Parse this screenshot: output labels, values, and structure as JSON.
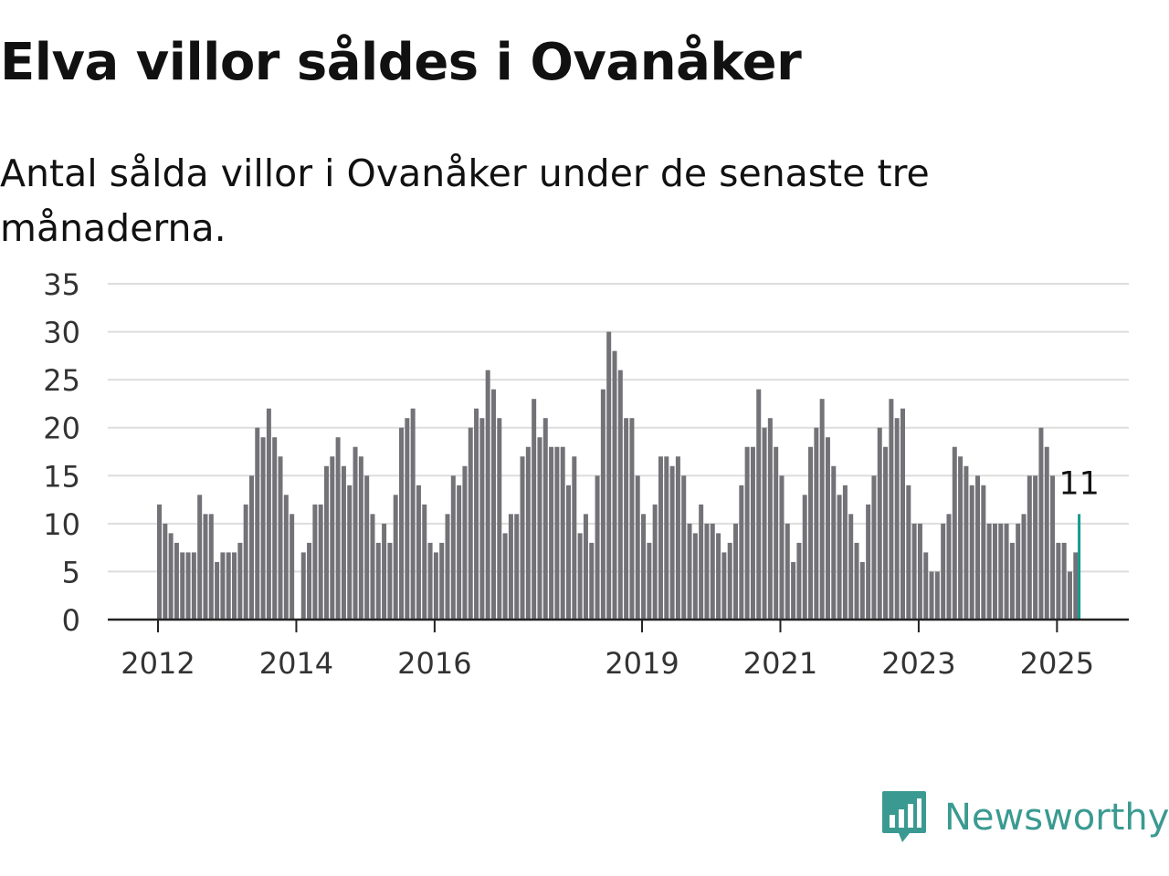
{
  "title": "Elva villor såldes i Ovanåker",
  "subtitle": "Antal sålda villor i Ovanåker under de senaste tre månaderna.",
  "brand": {
    "name": "Newsworthy",
    "color": "#3a9a91"
  },
  "chart_data": {
    "type": "bar",
    "title": "Elva villor såldes i Ovanåker",
    "subtitle": "Antal sålda villor i Ovanåker under de senaste tre månaderna.",
    "xlabel": "",
    "ylabel": "",
    "ylim": [
      0,
      35
    ],
    "yticks": [
      0,
      5,
      10,
      15,
      20,
      25,
      30,
      35
    ],
    "xtick_labels": [
      "2012",
      "2014",
      "2016",
      "2019",
      "2021",
      "2023",
      "2025"
    ],
    "start_period": "2012-01",
    "frequency": "monthly",
    "grid": true,
    "legend": "none",
    "bar_color": "#737277",
    "highlight_color": "#149b8f",
    "highlight_label": "11",
    "values": [
      12,
      10,
      9,
      8,
      7,
      7,
      7,
      13,
      11,
      11,
      6,
      7,
      7,
      7,
      8,
      12,
      15,
      20,
      19,
      22,
      19,
      17,
      13,
      11,
      0,
      7,
      8,
      12,
      12,
      16,
      17,
      19,
      16,
      14,
      18,
      17,
      15,
      11,
      8,
      10,
      8,
      13,
      20,
      21,
      22,
      14,
      12,
      8,
      7,
      8,
      11,
      15,
      14,
      16,
      20,
      22,
      21,
      26,
      24,
      21,
      9,
      11,
      11,
      17,
      18,
      23,
      19,
      21,
      18,
      18,
      18,
      14,
      17,
      9,
      11,
      8,
      15,
      24,
      30,
      28,
      26,
      21,
      21,
      15,
      11,
      8,
      12,
      17,
      17,
      16,
      17,
      15,
      10,
      9,
      12,
      10,
      10,
      9,
      7,
      8,
      10,
      14,
      18,
      18,
      24,
      20,
      21,
      18,
      15,
      10,
      6,
      8,
      13,
      18,
      20,
      23,
      19,
      16,
      13,
      14,
      11,
      8,
      6,
      12,
      15,
      20,
      18,
      23,
      21,
      22,
      14,
      10,
      10,
      7,
      5,
      5,
      10,
      11,
      18,
      17,
      16,
      14,
      15,
      14,
      10,
      10,
      10,
      10,
      8,
      10,
      11,
      15,
      15,
      20,
      18,
      15,
      8,
      8,
      5,
      7,
      11
    ]
  }
}
